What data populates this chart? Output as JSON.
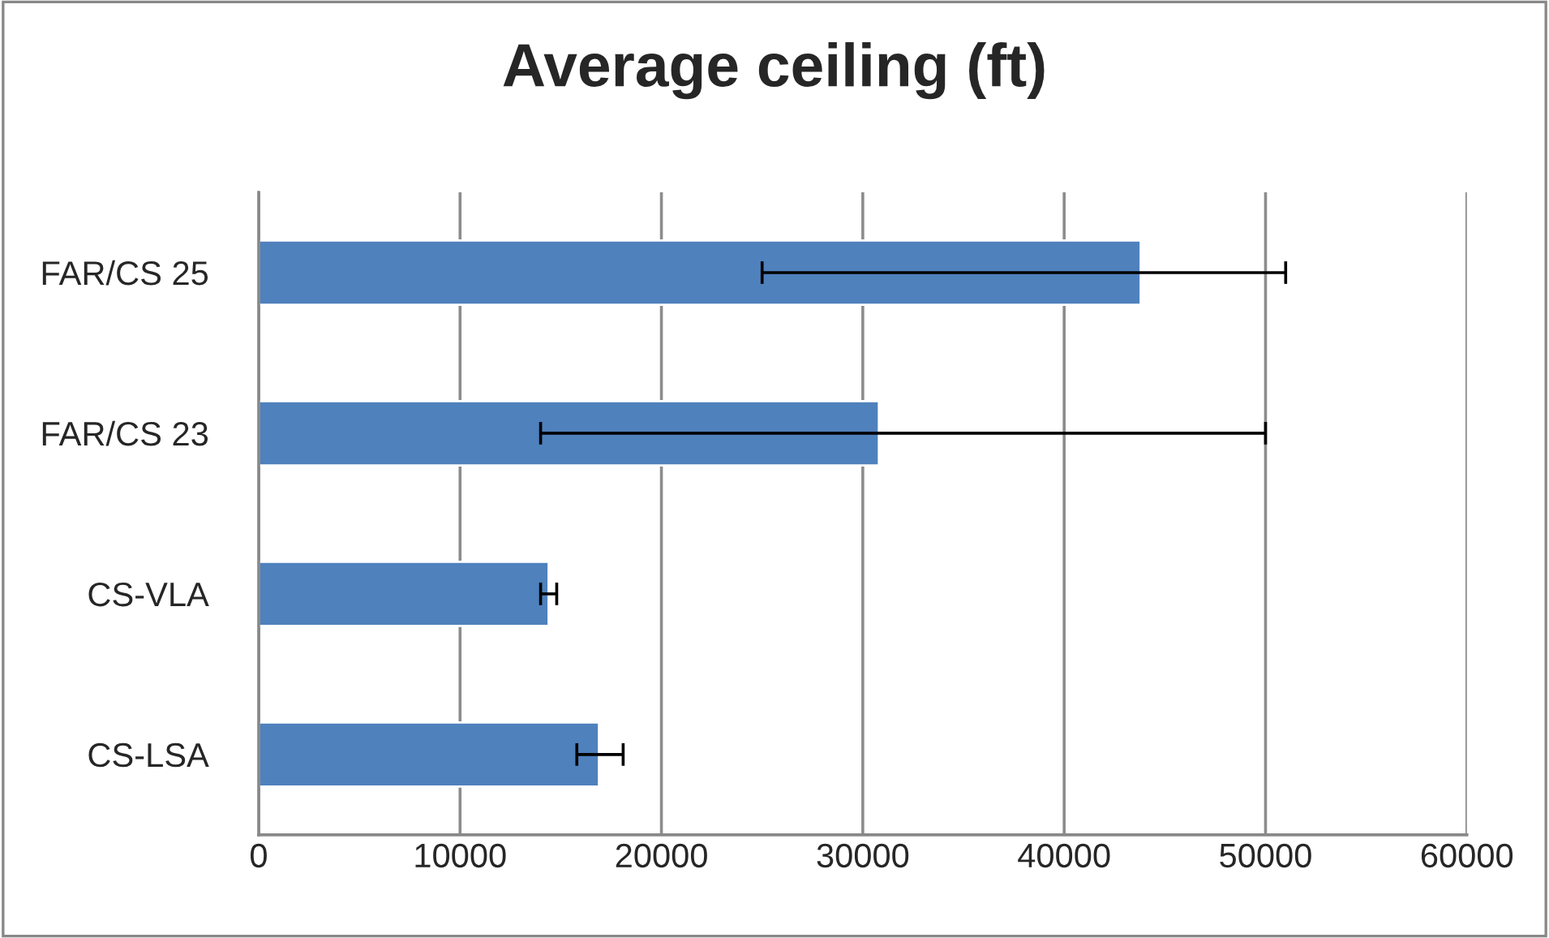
{
  "chart_data": {
    "type": "bar",
    "orientation": "horizontal",
    "title": "Average ceiling (ft)",
    "categories": [
      "FAR/CS 25",
      "FAR/CS 23",
      "CS-VLA",
      "CS-LSA"
    ],
    "values": [
      43800,
      30800,
      14400,
      16900
    ],
    "errors": [
      [
        25000,
        51000
      ],
      [
        14000,
        50000
      ],
      [
        14000,
        14800
      ],
      [
        15800,
        18100
      ]
    ],
    "color": "#4f81bd",
    "xlim": [
      0,
      60000
    ],
    "xticks": [
      0,
      10000,
      20000,
      30000,
      40000,
      50000,
      60000
    ],
    "grid": "x",
    "legend": false
  }
}
